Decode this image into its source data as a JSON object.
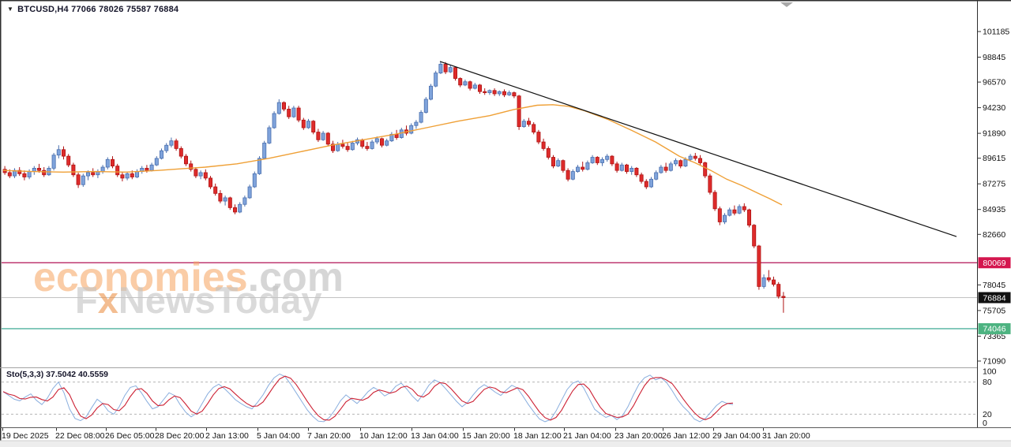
{
  "header": {
    "dropdown_icon": "▼",
    "symbol_info": "BTCUSD,H4  77066 78026 75587 76884"
  },
  "watermark": {
    "brand_orange": "economies",
    "brand_suffix": ".com",
    "f": "F",
    "x": "x",
    "rest": "NewsToday"
  },
  "indicator": {
    "label": "Sto(5,3,3) 37.5042 40.5559"
  },
  "chart_data": {
    "type": "candlestick",
    "symbol": "BTCUSD",
    "timeframe": "H4",
    "ohlc_display": {
      "open": "77066",
      "high": "78026",
      "low": "75587",
      "close": "76884"
    },
    "ylim": [
      70500,
      103200
    ],
    "grid": "off",
    "y_axis": {
      "ticks": [
        101185,
        98845,
        96570,
        94230,
        91890,
        89615,
        87275,
        84935,
        82660,
        78045,
        75705,
        73365,
        71090
      ]
    },
    "x_axis": {
      "labels": [
        [
          2,
          "19 Dec 2025"
        ],
        [
          70,
          "22 Dec 08:00"
        ],
        [
          133,
          "26 Dec 05:00"
        ],
        [
          196,
          "28 Dec 20:00"
        ],
        [
          260,
          "2 Jan 13:00"
        ],
        [
          325,
          "5 Jan 04:00"
        ],
        [
          389,
          "7 Jan 20:00"
        ],
        [
          455,
          "10 Jan 12:00"
        ],
        [
          520,
          "13 Jan 04:00"
        ],
        [
          585,
          "15 Jan 20:00"
        ],
        [
          650,
          "18 Jan 12:00"
        ],
        [
          713,
          "21 Jan 04:00"
        ],
        [
          778,
          "23 Jan 20:00"
        ],
        [
          838,
          "26 Jan 12:00"
        ],
        [
          902,
          "29 Jan 04:00"
        ],
        [
          965,
          "31 Jan 20:00"
        ]
      ]
    },
    "colors": {
      "up_fill": "#7fa3db",
      "up_stroke": "#4a6fae",
      "down_fill": "#de2b2b",
      "down_stroke": "#b01414"
    },
    "candle_layout": {
      "x_start": 4,
      "step": 6.2,
      "width": 4.2
    },
    "candles": [
      [
        88600,
        88900,
        88100,
        88300
      ],
      [
        88300,
        88600,
        87800,
        88000
      ],
      [
        88000,
        88700,
        87800,
        88500
      ],
      [
        88500,
        88800,
        88000,
        88200
      ],
      [
        88200,
        88500,
        87600,
        87900
      ],
      [
        87900,
        88600,
        87700,
        88400
      ],
      [
        88400,
        88900,
        88100,
        88700
      ],
      [
        88700,
        89100,
        88300,
        88500
      ],
      [
        88500,
        88800,
        87900,
        88100
      ],
      [
        88100,
        88900,
        88000,
        88700
      ],
      [
        88700,
        90100,
        88500,
        89900
      ],
      [
        89900,
        90800,
        89600,
        90400
      ],
      [
        90400,
        90700,
        89500,
        89800
      ],
      [
        89800,
        90000,
        88800,
        89000
      ],
      [
        89000,
        89200,
        87900,
        88100
      ],
      [
        88100,
        88300,
        86900,
        87200
      ],
      [
        87200,
        88200,
        87000,
        88000
      ],
      [
        88000,
        88500,
        87600,
        88300
      ],
      [
        88300,
        88700,
        87900,
        88100
      ],
      [
        88100,
        88600,
        87800,
        88400
      ],
      [
        88400,
        89000,
        88200,
        88800
      ],
      [
        88800,
        89700,
        88600,
        89500
      ],
      [
        89500,
        89800,
        88700,
        88900
      ],
      [
        88900,
        89100,
        87900,
        88100
      ],
      [
        88100,
        88400,
        87500,
        87800
      ],
      [
        87800,
        88400,
        87600,
        88200
      ],
      [
        88200,
        88500,
        87700,
        87900
      ],
      [
        87900,
        88600,
        87800,
        88400
      ],
      [
        88400,
        88900,
        88200,
        88700
      ],
      [
        88700,
        89000,
        88300,
        88500
      ],
      [
        88500,
        89200,
        88400,
        89000
      ],
      [
        89000,
        89800,
        88900,
        89600
      ],
      [
        89600,
        90500,
        89500,
        90300
      ],
      [
        90300,
        91000,
        90100,
        90800
      ],
      [
        90800,
        91500,
        90600,
        91200
      ],
      [
        91200,
        91400,
        90300,
        90500
      ],
      [
        90500,
        90700,
        89600,
        89800
      ],
      [
        89800,
        90000,
        88900,
        89100
      ],
      [
        89100,
        89400,
        88400,
        88600
      ],
      [
        88600,
        88800,
        87800,
        88000
      ],
      [
        88000,
        88500,
        87700,
        88300
      ],
      [
        88300,
        88600,
        87600,
        87800
      ],
      [
        87800,
        88000,
        86800,
        87000
      ],
      [
        87000,
        87300,
        86200,
        86400
      ],
      [
        86400,
        86700,
        85500,
        85700
      ],
      [
        85700,
        86200,
        85300,
        86000
      ],
      [
        86000,
        86100,
        84900,
        85100
      ],
      [
        85100,
        85400,
        84500,
        84700
      ],
      [
        84700,
        85600,
        84600,
        85400
      ],
      [
        85400,
        86200,
        85200,
        86000
      ],
      [
        86000,
        87200,
        85900,
        87000
      ],
      [
        87000,
        88400,
        86900,
        88200
      ],
      [
        88200,
        89800,
        88100,
        89600
      ],
      [
        89600,
        91200,
        89500,
        91000
      ],
      [
        91000,
        92600,
        90900,
        92400
      ],
      [
        92400,
        93900,
        92300,
        93700
      ],
      [
        93700,
        95000,
        93600,
        94700
      ],
      [
        94700,
        94800,
        93900,
        94100
      ],
      [
        94100,
        94400,
        93200,
        93400
      ],
      [
        93400,
        94400,
        93300,
        94200
      ],
      [
        94200,
        94400,
        92900,
        93100
      ],
      [
        93100,
        93300,
        92200,
        92400
      ],
      [
        92400,
        93200,
        92300,
        93000
      ],
      [
        93000,
        93100,
        91800,
        92000
      ],
      [
        92000,
        92300,
        91100,
        91300
      ],
      [
        91300,
        92100,
        91200,
        91900
      ],
      [
        91900,
        92000,
        90700,
        90900
      ],
      [
        90900,
        91200,
        90100,
        90300
      ],
      [
        90300,
        91100,
        90200,
        90900
      ],
      [
        90900,
        91300,
        90500,
        90700
      ],
      [
        90700,
        91000,
        90200,
        90400
      ],
      [
        90400,
        91200,
        90300,
        91000
      ],
      [
        91000,
        91500,
        90800,
        91300
      ],
      [
        91300,
        91400,
        90500,
        90700
      ],
      [
        90700,
        91100,
        90300,
        90500
      ],
      [
        90500,
        91300,
        90400,
        91100
      ],
      [
        91100,
        91600,
        90900,
        91400
      ],
      [
        91400,
        91500,
        90600,
        90800
      ],
      [
        90800,
        91400,
        90700,
        91200
      ],
      [
        91200,
        92000,
        91100,
        91800
      ],
      [
        91800,
        92200,
        91300,
        91500
      ],
      [
        91500,
        92400,
        91400,
        92200
      ],
      [
        92200,
        92600,
        91700,
        91900
      ],
      [
        91900,
        92800,
        91800,
        92600
      ],
      [
        92600,
        93100,
        92300,
        92900
      ],
      [
        92900,
        94000,
        92800,
        93800
      ],
      [
        93800,
        95200,
        93700,
        95000
      ],
      [
        95000,
        96400,
        94900,
        96200
      ],
      [
        96200,
        97600,
        96100,
        97400
      ],
      [
        97400,
        98450,
        97300,
        98200
      ],
      [
        98200,
        98400,
        97300,
        97500
      ],
      [
        97500,
        98100,
        97400,
        97900
      ],
      [
        97900,
        98000,
        96700,
        96900
      ],
      [
        96900,
        97000,
        96100,
        96300
      ],
      [
        96300,
        96800,
        96200,
        96600
      ],
      [
        96600,
        96700,
        95800,
        96000
      ],
      [
        96000,
        96500,
        95900,
        96300
      ],
      [
        96300,
        96400,
        95500,
        95700
      ],
      [
        95700,
        96000,
        95400,
        95600
      ],
      [
        95600,
        95900,
        95400,
        95800
      ],
      [
        95800,
        96000,
        95300,
        95500
      ],
      [
        95500,
        95800,
        95300,
        95700
      ],
      [
        95700,
        95900,
        95200,
        95400
      ],
      [
        95400,
        95800,
        95300,
        95600
      ],
      [
        95600,
        95700,
        95100,
        95300
      ],
      [
        95300,
        95400,
        92200,
        92500
      ],
      [
        92500,
        93200,
        92400,
        93000
      ],
      [
        93000,
        93300,
        92500,
        92700
      ],
      [
        92700,
        92900,
        91800,
        92000
      ],
      [
        92000,
        92200,
        90900,
        91100
      ],
      [
        91100,
        91400,
        90300,
        90500
      ],
      [
        90500,
        90700,
        89500,
        89700
      ],
      [
        89700,
        89900,
        88700,
        88900
      ],
      [
        88900,
        89600,
        88800,
        89400
      ],
      [
        89400,
        89500,
        88300,
        88500
      ],
      [
        88500,
        88700,
        87500,
        87700
      ],
      [
        87700,
        88600,
        87600,
        88400
      ],
      [
        88400,
        89000,
        88300,
        88800
      ],
      [
        88800,
        89300,
        88400,
        88600
      ],
      [
        88600,
        89400,
        88500,
        89200
      ],
      [
        89200,
        89900,
        89100,
        89700
      ],
      [
        89700,
        89800,
        89000,
        89200
      ],
      [
        89200,
        89700,
        88900,
        89500
      ],
      [
        89500,
        90000,
        89300,
        89800
      ],
      [
        89800,
        89900,
        88900,
        89100
      ],
      [
        89100,
        89300,
        88300,
        88500
      ],
      [
        88500,
        89200,
        88400,
        89000
      ],
      [
        89000,
        89100,
        88200,
        88400
      ],
      [
        88400,
        88900,
        88100,
        88700
      ],
      [
        88700,
        88800,
        87900,
        88100
      ],
      [
        88100,
        88300,
        87300,
        87500
      ],
      [
        87500,
        87700,
        86800,
        87000
      ],
      [
        87000,
        87900,
        86900,
        87700
      ],
      [
        87700,
        88500,
        87600,
        88300
      ],
      [
        88300,
        89000,
        88200,
        88800
      ],
      [
        88800,
        89200,
        88300,
        88500
      ],
      [
        88500,
        89300,
        88400,
        89100
      ],
      [
        89100,
        89600,
        88900,
        89400
      ],
      [
        89400,
        89500,
        88700,
        88900
      ],
      [
        88900,
        89700,
        88800,
        89500
      ],
      [
        89500,
        90000,
        89300,
        89800
      ],
      [
        89800,
        90100,
        89400,
        89600
      ],
      [
        89600,
        89900,
        89000,
        89200
      ],
      [
        89200,
        89300,
        87800,
        88000
      ],
      [
        88000,
        88200,
        86300,
        86500
      ],
      [
        86500,
        86700,
        84800,
        85000
      ],
      [
        85000,
        85200,
        83500,
        83800
      ],
      [
        83800,
        84600,
        83600,
        84400
      ],
      [
        84400,
        85100,
        84300,
        84900
      ],
      [
        84900,
        85300,
        84400,
        84600
      ],
      [
        84600,
        85400,
        84500,
        85200
      ],
      [
        85200,
        85500,
        84700,
        84900
      ],
      [
        84900,
        85000,
        83300,
        83500
      ],
      [
        83500,
        83600,
        81400,
        81600
      ],
      [
        81600,
        81700,
        77600,
        77900
      ],
      [
        77900,
        79000,
        77700,
        78700
      ],
      [
        78700,
        79400,
        78300,
        78500
      ],
      [
        78500,
        78800,
        77900,
        78100
      ],
      [
        78100,
        78300,
        76800,
        77000
      ],
      [
        77000,
        77400,
        75500,
        76884
      ]
    ],
    "ma_line": {
      "name": "moving-average",
      "color": "#efa036",
      "points": [
        [
          4,
          88500
        ],
        [
          40,
          88400
        ],
        [
          80,
          88350
        ],
        [
          120,
          88400
        ],
        [
          160,
          88350
        ],
        [
          200,
          88500
        ],
        [
          230,
          88650
        ],
        [
          260,
          88800
        ],
        [
          300,
          89100
        ],
        [
          340,
          89600
        ],
        [
          380,
          90200
        ],
        [
          420,
          90800
        ],
        [
          460,
          91300
        ],
        [
          500,
          91800
        ],
        [
          540,
          92400
        ],
        [
          580,
          93000
        ],
        [
          620,
          93500
        ],
        [
          650,
          94050
        ],
        [
          680,
          94450
        ],
        [
          700,
          94500
        ],
        [
          720,
          94350
        ],
        [
          740,
          93950
        ],
        [
          770,
          93150
        ],
        [
          800,
          92150
        ],
        [
          830,
          91100
        ],
        [
          860,
          89800
        ],
        [
          880,
          89200
        ],
        [
          900,
          88500
        ],
        [
          920,
          87700
        ],
        [
          940,
          87100
        ],
        [
          960,
          86400
        ],
        [
          975,
          85900
        ],
        [
          990,
          85350
        ]
      ]
    },
    "trendline": {
      "name": "descending-trendline",
      "color": "#111111",
      "points": [
        [
          557,
          98450
        ],
        [
          1211,
          82460
        ]
      ]
    },
    "hlines": [
      {
        "price": 80069,
        "color": "#b31356",
        "w": 1.2,
        "label_bg": "#d4164e"
      },
      {
        "price": 76884,
        "color": "#c2c2c2",
        "w": 1.0,
        "label_bg": "#101010"
      },
      {
        "price": 74046,
        "color": "#2aa189",
        "w": 1.2,
        "label_bg": "#4db381"
      }
    ],
    "stochastic": {
      "label": "Sto(5,3,3)",
      "last_k": "37.5042",
      "last_d": "40.5559",
      "k_color": "#89aede",
      "d_color": "#cc2033",
      "levels": [
        80,
        20
      ],
      "scale": [
        100,
        80,
        20,
        0
      ],
      "x_start": 4,
      "x_step": 7,
      "k_values": [
        62,
        55,
        48,
        45,
        52,
        58,
        46,
        38,
        50,
        68,
        80,
        60,
        30,
        12,
        8,
        15,
        32,
        48,
        40,
        26,
        20,
        34,
        55,
        70,
        73,
        60,
        44,
        30,
        34,
        47,
        60,
        55,
        38,
        24,
        15,
        22,
        40,
        58,
        70,
        76,
        68,
        58,
        47,
        40,
        34,
        30,
        42,
        56,
        74,
        88,
        95,
        90,
        76,
        60,
        44,
        28,
        16,
        7,
        6,
        14,
        28,
        45,
        56,
        48,
        40,
        50,
        62,
        70,
        64,
        54,
        60,
        72,
        78,
        67,
        54,
        44,
        58,
        74,
        84,
        79,
        68,
        56,
        44,
        34,
        42,
        56,
        68,
        75,
        69,
        61,
        55,
        65,
        74,
        69,
        54,
        38,
        24,
        11,
        6,
        10,
        26,
        46,
        66,
        78,
        82,
        69,
        49,
        29,
        21,
        14,
        18,
        10,
        17,
        34,
        56,
        76,
        88,
        93,
        84,
        88,
        79,
        64,
        47,
        34,
        24,
        11,
        6,
        12,
        24,
        36,
        44,
        40,
        38
      ]
    }
  }
}
